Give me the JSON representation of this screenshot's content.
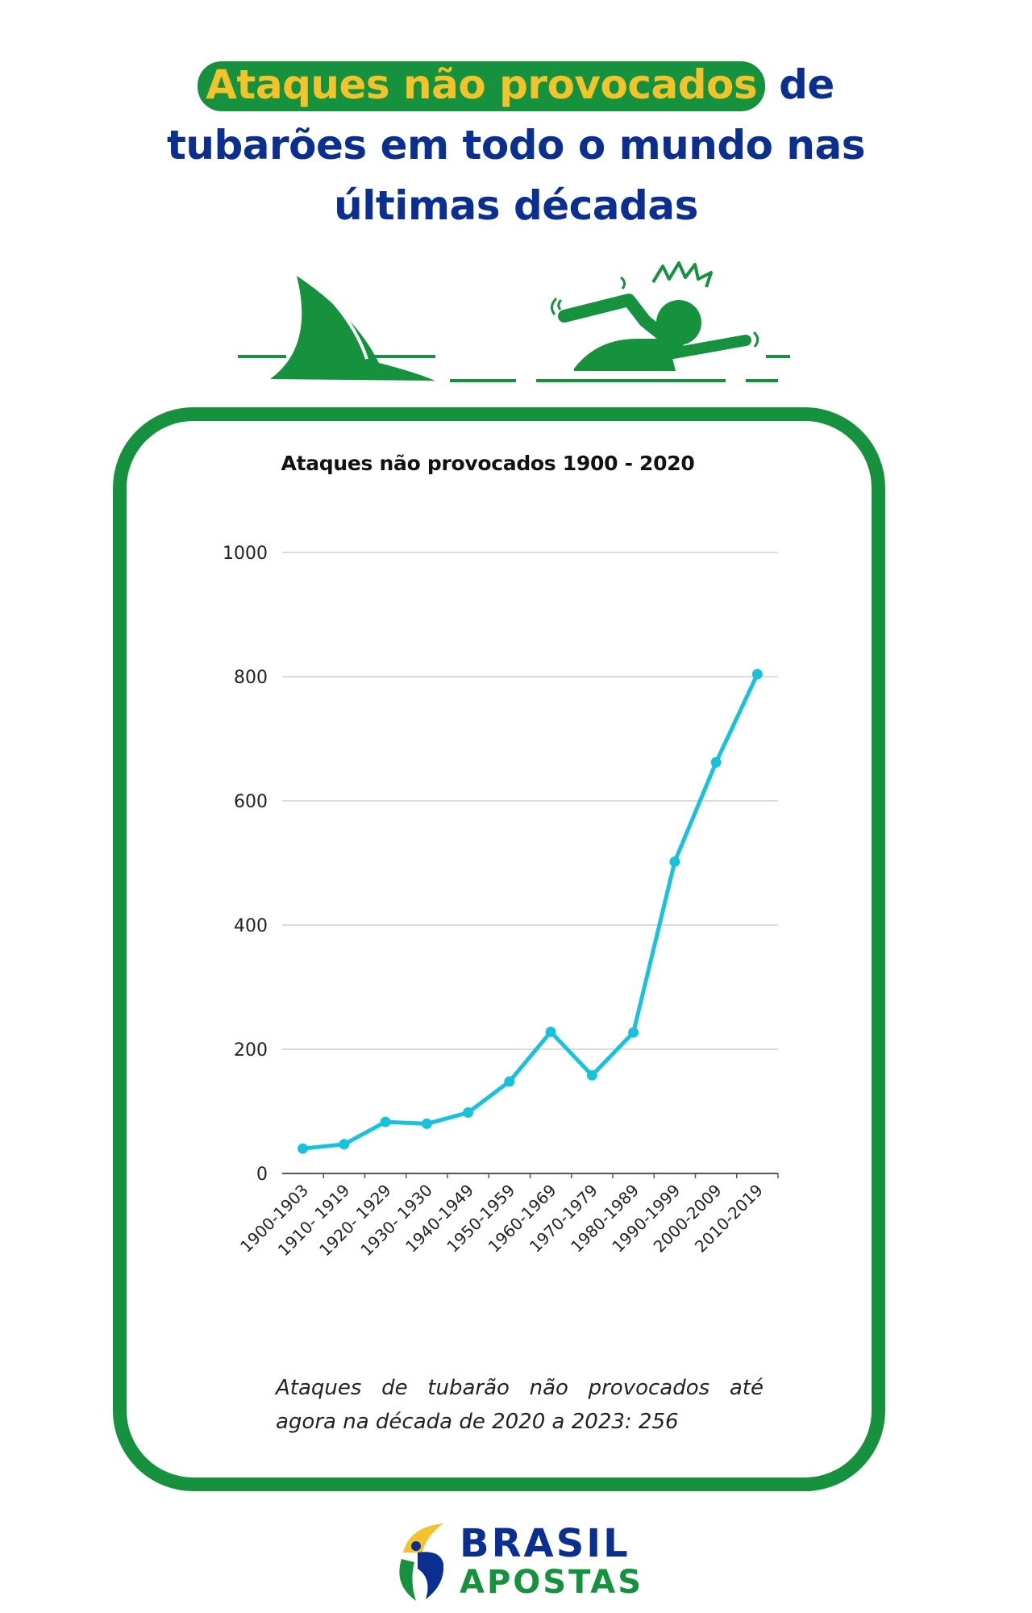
{
  "header": {
    "highlight": "Ataques não provocados",
    "title_rest_1": " de",
    "title_line_2": "tubarões em todo o mundo nas",
    "title_line_3": "últimas décadas"
  },
  "illustration": {
    "shark_fin_icon": "shark-fin-icon",
    "swimmer_icon": "distressed-swimmer-icon"
  },
  "chart_data": {
    "type": "line",
    "title": "Ataques não provocados 1900 - 2020",
    "xlabel": "",
    "ylabel": "",
    "categories": [
      "1900-1903",
      "1910- 1919",
      "1920- 1929",
      "1930- 1930",
      "1940-1949",
      "1950-1959",
      "1960-1969",
      "1970-1979",
      "1980-1989",
      "1990-1999",
      "2000-2009",
      "2010-2019"
    ],
    "series": [
      {
        "values": [
          40,
          47,
          83,
          80,
          98,
          148,
          228,
          158,
          227,
          502,
          662,
          804
        ]
      }
    ],
    "ylim": [
      0,
      1000
    ],
    "yticks": [
      0,
      200,
      400,
      600,
      800,
      1000
    ],
    "grid": true,
    "legend": "none",
    "colors": {
      "line": "#17c2dc",
      "grid": "#cfcfcf",
      "axis": "#555555"
    }
  },
  "note": {
    "text": "Ataques de tubarão não provocados até agora na década de 2020 a 2023: 256"
  },
  "brand": {
    "line1": "BRASIL",
    "line2": "APOSTAS",
    "colors": {
      "green": "#16923e",
      "blue": "#0b2f91",
      "yellow": "#f4c22a"
    }
  }
}
